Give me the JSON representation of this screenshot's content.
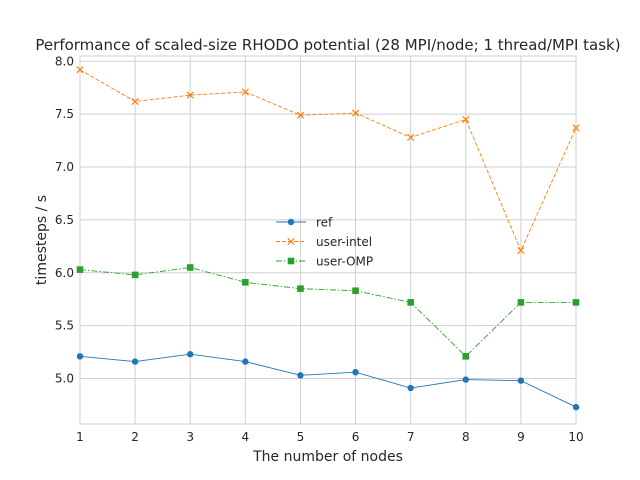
{
  "chart_data": {
    "type": "line",
    "title": "Performance of scaled-size RHODO potential (28 MPI/node; 1 thread/MPI task)",
    "xlabel": "The number of nodes",
    "ylabel": "timesteps / s",
    "x": [
      1,
      2,
      3,
      4,
      5,
      6,
      7,
      8,
      9,
      10
    ],
    "xlim": [
      1,
      10
    ],
    "ylim": [
      4.57,
      8.05
    ],
    "xticks": [
      "1",
      "2",
      "3",
      "4",
      "5",
      "6",
      "7",
      "8",
      "9",
      "10"
    ],
    "yticks": [
      "5.0",
      "5.5",
      "6.0",
      "6.5",
      "7.0",
      "7.5",
      "8.0"
    ],
    "grid": true,
    "legend_position": "center",
    "series": [
      {
        "name": "ref",
        "color": "#1f77b4",
        "marker": "circle",
        "line_style": "solid",
        "values": [
          5.21,
          5.16,
          5.23,
          5.16,
          5.03,
          5.06,
          4.91,
          4.99,
          4.98,
          4.73
        ]
      },
      {
        "name": "user-intel",
        "color": "#ff7f0e",
        "marker": "x",
        "line_style": "dashed",
        "values": [
          7.92,
          7.62,
          7.68,
          7.71,
          7.49,
          7.51,
          7.28,
          7.45,
          6.21,
          7.37
        ]
      },
      {
        "name": "user-OMP",
        "color": "#2ca02c",
        "marker": "square",
        "line_style": "dashdot",
        "values": [
          6.03,
          5.98,
          6.05,
          5.91,
          5.85,
          5.83,
          5.72,
          5.21,
          5.72,
          5.72
        ]
      }
    ]
  }
}
